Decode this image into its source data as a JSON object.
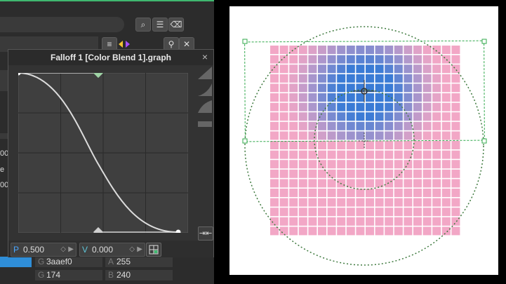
{
  "dialog": {
    "title": "Falloff 1 [Color Blend 1].graph",
    "close_glyph": "×"
  },
  "params": {
    "p_key": "P",
    "p_value": "0.500",
    "v_key": "V",
    "v_value": "0.000",
    "diamond": "◇",
    "arrow": "▶"
  },
  "left_partial": {
    "row_a": "00",
    "row_b": "e",
    "row_c": "00"
  },
  "fields": {
    "hex_key": "G",
    "hex_value": "3aaef0",
    "a_key": "A",
    "a_value": "255",
    "g_key": "G",
    "g_value": "174",
    "b_key": "B",
    "b_value": "240"
  },
  "colors": {
    "accent_green": "#3fb86f",
    "falloff_blue": "#3a7bd5",
    "base_pink": "#f2a7c6",
    "selection_blue": "#2f8ed8"
  },
  "icons": [
    "search-icon",
    "add-layer-icon",
    "delete-icon",
    "list-icon",
    "color-toggle-icon",
    "pin-icon",
    "close-icon",
    "snap-icon",
    "curve-preset-icon",
    "fit-icon",
    "zoom-fit-icon"
  ]
}
